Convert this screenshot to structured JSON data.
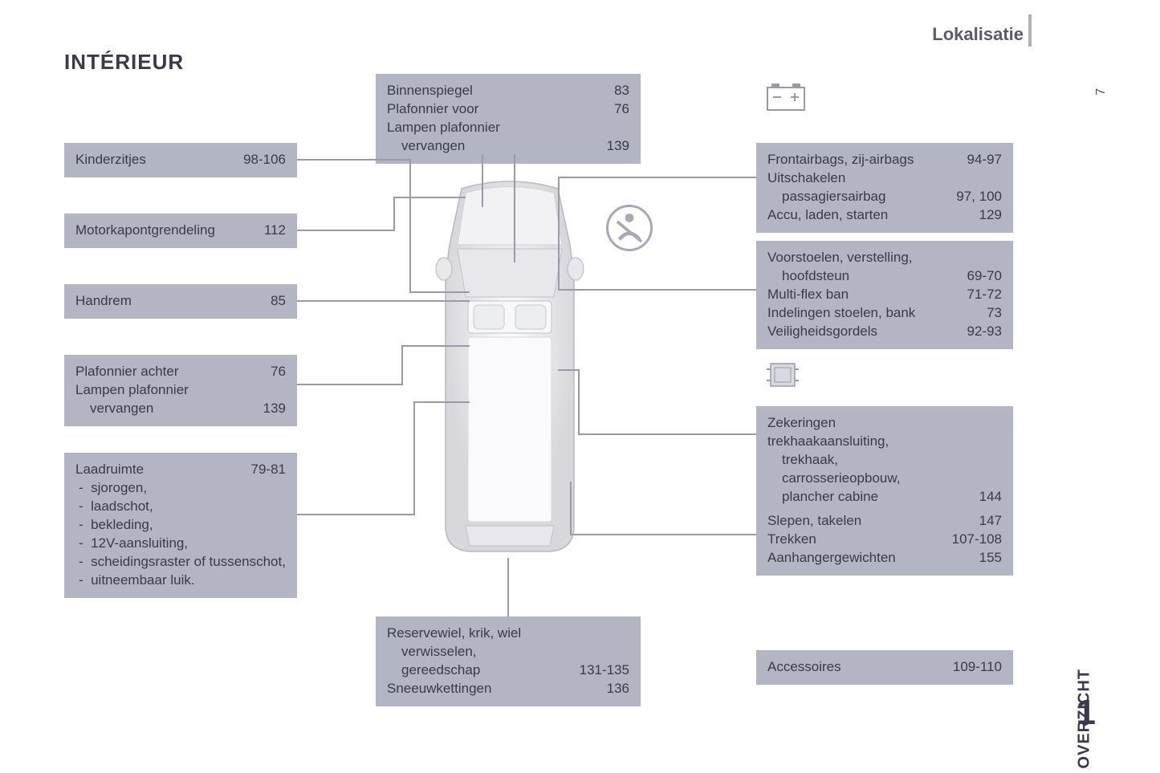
{
  "header": {
    "localisation": "Lokalisatie",
    "title": "INTÉRIEUR",
    "sideLabel": "OVERZICHT",
    "chapter": "1",
    "pageNum": "7"
  },
  "colors": {
    "box_bg": "#b3b4c4",
    "text": "#3a3a4a",
    "line": "#9a9aab"
  },
  "left": {
    "b1": {
      "items": [
        {
          "lbl": "Kinderzitjes",
          "pg": "98-106"
        }
      ]
    },
    "b2": {
      "items": [
        {
          "lbl": "Motorkapontgrendeling",
          "pg": "112"
        }
      ]
    },
    "b3": {
      "items": [
        {
          "lbl": "Handrem",
          "pg": "85"
        }
      ]
    },
    "b4": {
      "items": [
        {
          "lbl": "Plafonnier achter",
          "pg": "76"
        },
        {
          "lbl": "Lampen plafonnier",
          "pg": ""
        },
        {
          "lbl": "vervangen",
          "pg": "139",
          "sub": true
        }
      ]
    },
    "b5": {
      "head": {
        "lbl": "Laadruimte",
        "pg": "79-81"
      },
      "bullets": [
        "sjorogen,",
        "laadschot,",
        "bekleding,",
        "12V-aansluiting,",
        "scheidingsraster of tussenschot,",
        "uitneembaar luik."
      ]
    }
  },
  "top": {
    "b1": {
      "items": [
        {
          "lbl": "Binnenspiegel",
          "pg": "83"
        },
        {
          "lbl": "Plafonnier voor",
          "pg": "76"
        },
        {
          "lbl": "Lampen plafonnier",
          "pg": ""
        },
        {
          "lbl": "vervangen",
          "pg": "139",
          "sub": true
        }
      ]
    }
  },
  "bottom": {
    "b1": {
      "items": [
        {
          "lbl": "Reservewiel, krik, wiel",
          "pg": ""
        },
        {
          "lbl": "verwisselen,",
          "pg": "",
          "sub": true
        },
        {
          "lbl": "gereedschap",
          "pg": "131-135",
          "sub": true
        },
        {
          "lbl": "Sneeuwkettingen",
          "pg": "136"
        }
      ]
    }
  },
  "right": {
    "b1": {
      "items": [
        {
          "lbl": "Frontairbags, zij-airbags",
          "pg": "94-97"
        },
        {
          "lbl": "Uitschakelen",
          "pg": ""
        },
        {
          "lbl": "passagiersairbag",
          "pg": "97, 100",
          "sub": true
        },
        {
          "lbl": "Accu, laden, starten",
          "pg": "129"
        }
      ]
    },
    "b2": {
      "items": [
        {
          "lbl": "Voorstoelen, verstelling,",
          "pg": ""
        },
        {
          "lbl": "hoofdsteun",
          "pg": "69-70",
          "sub": true
        },
        {
          "lbl": "Multi-flex ban",
          "pg": "71-72"
        },
        {
          "lbl": "Indelingen stoelen, bank",
          "pg": "73"
        },
        {
          "lbl": "Veiligheidsgordels",
          "pg": "92-93"
        }
      ]
    },
    "b3": {
      "items": [
        {
          "lbl": "Zekeringen trekhaakaansluiting,",
          "pg": ""
        },
        {
          "lbl": "trekhaak, carrosserieopbouw,",
          "pg": "",
          "sub": true
        },
        {
          "lbl": "plancher cabine",
          "pg": "144",
          "sub": true
        }
      ]
    },
    "b4": {
      "items": [
        {
          "lbl": "Slepen, takelen",
          "pg": "147"
        },
        {
          "lbl": "Trekken",
          "pg": "107-108"
        },
        {
          "lbl": "Aanhangergewichten",
          "pg": "155"
        }
      ]
    },
    "b5": {
      "items": [
        {
          "lbl": "Accessoires",
          "pg": "109-110"
        }
      ]
    }
  }
}
